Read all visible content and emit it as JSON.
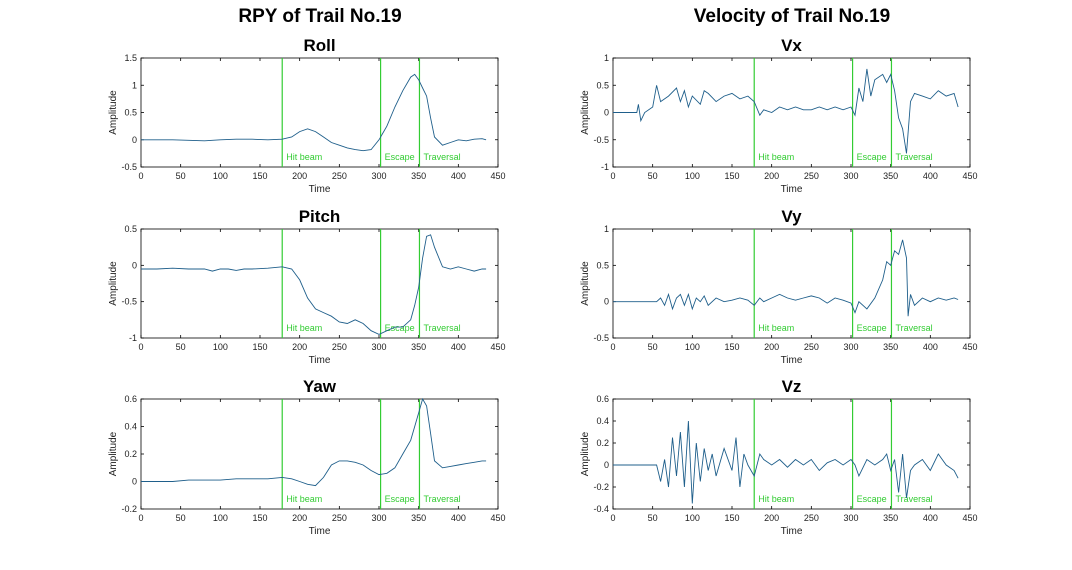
{
  "figure": {
    "left_title": "RPY of Trail No.19",
    "right_title": "Velocity of Trail No.19"
  },
  "colors": {
    "line": "#1f5f8b",
    "event": "#33cc33",
    "axis": "#000000"
  },
  "chart_data": [
    {
      "type": "line",
      "title": "Roll",
      "xlabel": "Time",
      "ylabel": "Amplitude",
      "xlim": [
        0,
        450
      ],
      "ylim": [
        -0.5,
        1.5
      ],
      "xticks": [
        0,
        50,
        100,
        150,
        200,
        250,
        300,
        350,
        400,
        450
      ],
      "yticks": [
        -0.5,
        0,
        0.5,
        1,
        1.5
      ],
      "events": [
        {
          "x": 178,
          "label": "Hit beam"
        },
        {
          "x": 302,
          "label": "Escape"
        },
        {
          "x": 351,
          "label": "Traversal"
        }
      ],
      "x": [
        0,
        20,
        40,
        60,
        80,
        100,
        120,
        140,
        160,
        178,
        190,
        200,
        210,
        220,
        230,
        240,
        250,
        260,
        270,
        280,
        290,
        300,
        310,
        320,
        330,
        340,
        345,
        350,
        355,
        360,
        365,
        370,
        380,
        390,
        400,
        410,
        420,
        430,
        435
      ],
      "y": [
        0,
        0,
        0,
        -0.01,
        -0.02,
        0,
        0.01,
        0.01,
        0,
        0.01,
        0.05,
        0.15,
        0.2,
        0.15,
        0.05,
        -0.05,
        -0.1,
        -0.15,
        -0.18,
        -0.2,
        -0.18,
        0,
        0.25,
        0.6,
        0.9,
        1.15,
        1.2,
        1.1,
        0.95,
        0.8,
        0.4,
        0.05,
        -0.1,
        -0.05,
        0,
        -0.02,
        0.01,
        0.02,
        0
      ]
    },
    {
      "type": "line",
      "title": "Pitch",
      "xlabel": "Time",
      "ylabel": "Amplitude",
      "xlim": [
        0,
        450
      ],
      "ylim": [
        -1,
        0.5
      ],
      "xticks": [
        0,
        50,
        100,
        150,
        200,
        250,
        300,
        350,
        400,
        450
      ],
      "yticks": [
        -1,
        -0.5,
        0,
        0.5
      ],
      "events": [
        {
          "x": 178,
          "label": "Hit beam"
        },
        {
          "x": 302,
          "label": "Escape"
        },
        {
          "x": 351,
          "label": "Traversal"
        }
      ],
      "x": [
        0,
        20,
        40,
        60,
        80,
        90,
        100,
        110,
        120,
        130,
        140,
        160,
        178,
        190,
        200,
        210,
        220,
        230,
        240,
        250,
        260,
        270,
        280,
        290,
        300,
        310,
        320,
        330,
        340,
        345,
        350,
        355,
        360,
        365,
        370,
        380,
        390,
        400,
        410,
        420,
        430,
        435
      ],
      "y": [
        -0.05,
        -0.05,
        -0.04,
        -0.05,
        -0.05,
        -0.08,
        -0.05,
        -0.05,
        -0.07,
        -0.05,
        -0.05,
        -0.04,
        -0.02,
        -0.05,
        -0.2,
        -0.45,
        -0.6,
        -0.65,
        -0.7,
        -0.78,
        -0.8,
        -0.75,
        -0.8,
        -0.9,
        -0.95,
        -0.9,
        -0.85,
        -0.85,
        -0.75,
        -0.55,
        -0.3,
        0.1,
        0.4,
        0.42,
        0.25,
        -0.02,
        -0.05,
        -0.02,
        -0.05,
        -0.08,
        -0.05,
        -0.05
      ]
    },
    {
      "type": "line",
      "title": "Yaw",
      "xlabel": "Time",
      "ylabel": "Amplitude",
      "xlim": [
        0,
        450
      ],
      "ylim": [
        -0.2,
        0.6
      ],
      "xticks": [
        0,
        50,
        100,
        150,
        200,
        250,
        300,
        350,
        400,
        450
      ],
      "yticks": [
        -0.2,
        0,
        0.2,
        0.4,
        0.6
      ],
      "events": [
        {
          "x": 178,
          "label": "Hit beam"
        },
        {
          "x": 302,
          "label": "Escape"
        },
        {
          "x": 351,
          "label": "Traversal"
        }
      ],
      "x": [
        0,
        20,
        40,
        60,
        80,
        100,
        120,
        140,
        160,
        178,
        190,
        200,
        210,
        220,
        230,
        240,
        250,
        260,
        270,
        280,
        290,
        300,
        310,
        320,
        330,
        340,
        350,
        355,
        360,
        365,
        370,
        380,
        390,
        400,
        410,
        420,
        430,
        435
      ],
      "y": [
        0,
        0,
        0,
        0.01,
        0.01,
        0.01,
        0.02,
        0.02,
        0.02,
        0.03,
        0.02,
        0.0,
        -0.02,
        -0.03,
        0.03,
        0.12,
        0.15,
        0.15,
        0.14,
        0.12,
        0.08,
        0.05,
        0.06,
        0.1,
        0.2,
        0.3,
        0.5,
        0.6,
        0.55,
        0.35,
        0.15,
        0.1,
        0.11,
        0.12,
        0.13,
        0.14,
        0.15,
        0.15
      ]
    },
    {
      "type": "line",
      "title": "Vx",
      "xlabel": "Time",
      "ylabel": "Amplitude",
      "xlim": [
        0,
        450
      ],
      "ylim": [
        -1,
        1
      ],
      "xticks": [
        0,
        50,
        100,
        150,
        200,
        250,
        300,
        350,
        400,
        450
      ],
      "yticks": [
        -1,
        -0.5,
        0,
        0.5,
        1
      ],
      "events": [
        {
          "x": 178,
          "label": "Hit beam"
        },
        {
          "x": 302,
          "label": "Escape"
        },
        {
          "x": 351,
          "label": "Traversal"
        }
      ],
      "x": [
        0,
        10,
        20,
        30,
        32,
        35,
        40,
        50,
        55,
        60,
        70,
        80,
        85,
        90,
        95,
        100,
        110,
        115,
        120,
        130,
        140,
        150,
        160,
        170,
        178,
        185,
        190,
        200,
        210,
        220,
        230,
        240,
        250,
        260,
        270,
        280,
        290,
        300,
        305,
        310,
        315,
        320,
        325,
        330,
        340,
        345,
        350,
        355,
        360,
        365,
        370,
        375,
        380,
        390,
        400,
        410,
        420,
        430,
        435
      ],
      "y": [
        0,
        0,
        0,
        0,
        0.15,
        -0.15,
        0,
        0.1,
        0.5,
        0.2,
        0.3,
        0.45,
        0.2,
        0.4,
        0.1,
        0.3,
        0.15,
        0.4,
        0.35,
        0.2,
        0.3,
        0.35,
        0.25,
        0.3,
        0.2,
        -0.05,
        0.05,
        0,
        0.1,
        0.05,
        0.1,
        0.05,
        0.05,
        0.1,
        0.05,
        0.1,
        0.05,
        0.1,
        -0.05,
        0.45,
        0.2,
        0.8,
        0.3,
        0.6,
        0.7,
        0.55,
        0.7,
        0.4,
        -0.1,
        -0.3,
        -0.75,
        0.2,
        0.35,
        0.3,
        0.25,
        0.4,
        0.3,
        0.35,
        0.1
      ]
    },
    {
      "type": "line",
      "title": "Vy",
      "xlabel": "Time",
      "ylabel": "Amplitude",
      "xlim": [
        0,
        450
      ],
      "ylim": [
        -0.5,
        1
      ],
      "xticks": [
        0,
        50,
        100,
        150,
        200,
        250,
        300,
        350,
        400,
        450
      ],
      "yticks": [
        -0.5,
        0,
        0.5,
        1
      ],
      "events": [
        {
          "x": 178,
          "label": "Hit beam"
        },
        {
          "x": 302,
          "label": "Escape"
        },
        {
          "x": 351,
          "label": "Traversal"
        }
      ],
      "x": [
        0,
        20,
        40,
        55,
        60,
        65,
        70,
        75,
        80,
        85,
        90,
        95,
        100,
        105,
        110,
        115,
        120,
        130,
        140,
        150,
        160,
        170,
        178,
        185,
        190,
        200,
        210,
        220,
        230,
        240,
        250,
        260,
        270,
        280,
        290,
        300,
        305,
        310,
        320,
        330,
        340,
        345,
        350,
        355,
        360,
        365,
        370,
        372,
        375,
        380,
        390,
        400,
        410,
        420,
        430,
        435
      ],
      "y": [
        0,
        0,
        0,
        0,
        0.05,
        -0.05,
        0.1,
        -0.1,
        0.05,
        0.1,
        -0.05,
        0.1,
        -0.1,
        0.05,
        0,
        0.08,
        -0.05,
        0.05,
        0,
        0.02,
        0.05,
        0.02,
        -0.05,
        0.05,
        0,
        0.05,
        0.1,
        0.05,
        0.02,
        0.05,
        0.08,
        0.05,
        -0.02,
        0.05,
        0.02,
        -0.02,
        -0.15,
        0,
        -0.1,
        0.05,
        0.3,
        0.55,
        0.5,
        0.7,
        0.65,
        0.85,
        0.6,
        -0.2,
        0.1,
        -0.05,
        0.05,
        0,
        0.05,
        0.02,
        0.05,
        0.03
      ]
    },
    {
      "type": "line",
      "title": "Vz",
      "xlabel": "Time",
      "ylabel": "Amplitude",
      "xlim": [
        0,
        450
      ],
      "ylim": [
        -0.4,
        0.6
      ],
      "xticks": [
        0,
        50,
        100,
        150,
        200,
        250,
        300,
        350,
        400,
        450
      ],
      "yticks": [
        -0.4,
        -0.2,
        0,
        0.2,
        0.4,
        0.6
      ],
      "events": [
        {
          "x": 178,
          "label": "Hit beam"
        },
        {
          "x": 302,
          "label": "Escape"
        },
        {
          "x": 351,
          "label": "Traversal"
        }
      ],
      "x": [
        0,
        20,
        40,
        55,
        60,
        65,
        70,
        75,
        80,
        85,
        90,
        95,
        100,
        105,
        110,
        115,
        120,
        125,
        130,
        140,
        150,
        155,
        160,
        165,
        170,
        178,
        185,
        190,
        200,
        210,
        220,
        230,
        240,
        250,
        260,
        270,
        280,
        290,
        300,
        305,
        310,
        320,
        330,
        340,
        345,
        350,
        355,
        360,
        365,
        370,
        375,
        380,
        390,
        400,
        410,
        420,
        430,
        435
      ],
      "y": [
        0,
        0,
        0,
        0,
        -0.15,
        0.05,
        -0.2,
        0.25,
        -0.1,
        0.3,
        -0.2,
        0.4,
        -0.35,
        0.2,
        -0.15,
        0.15,
        -0.05,
        0.1,
        -0.1,
        0.15,
        -0.05,
        0.25,
        -0.2,
        0.1,
        0,
        -0.1,
        0.1,
        0.05,
        0,
        0.05,
        -0.02,
        0.05,
        0,
        0.05,
        -0.05,
        0.02,
        0.05,
        0,
        0.05,
        0,
        -0.1,
        0.05,
        0,
        0.05,
        0.1,
        -0.05,
        0.05,
        -0.25,
        0.1,
        -0.3,
        -0.05,
        0,
        0.05,
        -0.05,
        0.1,
        0,
        -0.05,
        -0.12
      ]
    }
  ]
}
